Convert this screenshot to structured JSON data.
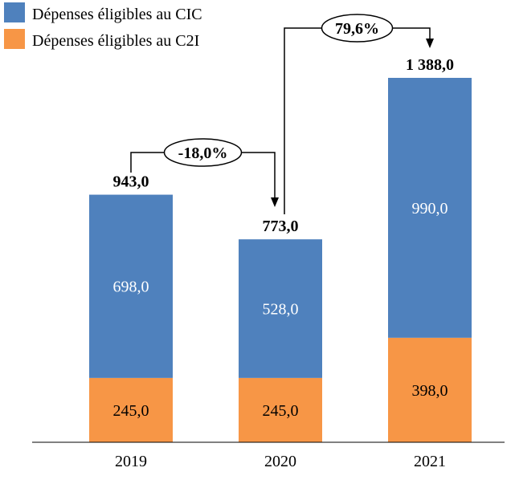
{
  "chart_data": {
    "type": "bar",
    "stacked": true,
    "categories": [
      "2019",
      "2020",
      "2021"
    ],
    "series": [
      {
        "name": "Dépenses éligibles au C2I",
        "color": "#f79646",
        "values": [
          245.0,
          245.0,
          398.0
        ],
        "labels": [
          "245,0",
          "245,0",
          "398,0"
        ]
      },
      {
        "name": "Dépenses éligibles au CIC",
        "color": "#4f81bd",
        "values": [
          698.0,
          528.0,
          990.0
        ],
        "labels": [
          "698,0",
          "528,0",
          "990,0"
        ]
      }
    ],
    "totals": [
      943.0,
      773.0,
      1388.0
    ],
    "total_labels": [
      "943,0",
      "773,0",
      "1 388,0"
    ],
    "growth": [
      {
        "from": "2019",
        "to": "2020",
        "label": "-18,0%"
      },
      {
        "from": "2020",
        "to": "2021",
        "label": "79,6%"
      }
    ],
    "title": "",
    "xlabel": "",
    "ylabel": "",
    "ylim": [
      0,
      1388.0
    ],
    "grid": false,
    "legend_placement": "top-left"
  }
}
